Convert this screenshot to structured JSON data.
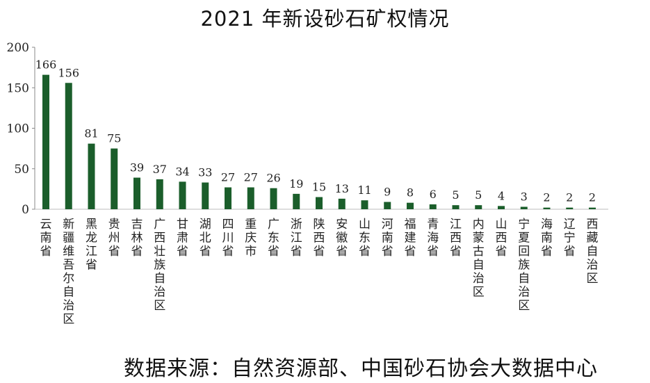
{
  "chart_data": {
    "type": "bar",
    "title": "2021 年新设砂石矿权情况",
    "categories": [
      "云南省",
      "新疆维吾尔自治区",
      "黑龙江省",
      "贵州省",
      "吉林省",
      "广西壮族自治区",
      "甘肃省",
      "湖北省",
      "四川省",
      "重庆市",
      "广东省",
      "浙江省",
      "陕西省",
      "安徽省",
      "山东省",
      "河南省",
      "福建省",
      "青海省",
      "江西省",
      "内蒙古自治区",
      "山西省",
      "宁夏回族自治区",
      "海南省",
      "辽宁省",
      "西藏自治区"
    ],
    "values": [
      166,
      156,
      81,
      75,
      39,
      37,
      34,
      33,
      27,
      27,
      26,
      19,
      15,
      13,
      11,
      9,
      8,
      6,
      5,
      5,
      4,
      3,
      2,
      2,
      2
    ],
    "yticks": [
      0,
      50,
      100,
      150,
      200
    ],
    "ylim": [
      0,
      200
    ],
    "grid": false,
    "legend": "none",
    "bar_color": "#1b5e2b"
  },
  "source": "数据来源：自然资源部、中国砂石协会大数据中心"
}
